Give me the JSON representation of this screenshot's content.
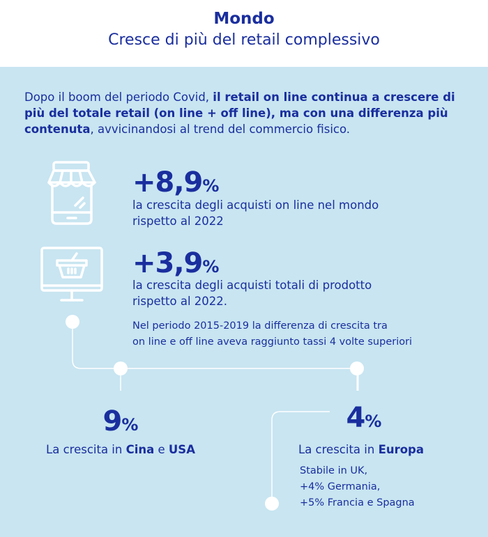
{
  "header": {
    "title": "Mondo",
    "subtitle": "Cresce di più del retail complessivo"
  },
  "intro": {
    "part1": "Dopo il boom del periodo Covid, ",
    "bold": "il retail on line continua a crescere di più del totale retail (on line + off line), ma con una differenza più contenuta",
    "part2": ", avvicinandosi al trend del commercio fisico."
  },
  "stats": [
    {
      "icon": "shop-smartphone-icon",
      "value": "+8,9",
      "unit": "%",
      "line1": "la crescita degli acquisti on line nel mondo",
      "line2": "rispetto al 2022"
    },
    {
      "icon": "monitor-basket-icon",
      "value": "+3,9",
      "unit": "%",
      "line1": "la crescita degli acquisti totali di prodotto",
      "line2": "rispetto al 2022.",
      "note1": "Nel periodo 2015-2019 la differenza di crescita tra",
      "note2": "on line e off line aveva raggiunto tassi 4 volte superiori"
    }
  ],
  "regions": [
    {
      "value": "9",
      "unit": "%",
      "label_pre": "La crescita in ",
      "bold1": "Cina",
      "mid": " e ",
      "bold2": "USA"
    },
    {
      "value": "4",
      "unit": "%",
      "label_pre": "La crescita in ",
      "bold1": "Europa",
      "notes": [
        "Stabile in UK,",
        "+4% Germania,",
        "+5% Francia e Spagna"
      ]
    }
  ],
  "colors": {
    "text": "#1a2e9e",
    "background": "#c8e5f1",
    "header": "#ffffff",
    "lines": "#ffffff"
  }
}
